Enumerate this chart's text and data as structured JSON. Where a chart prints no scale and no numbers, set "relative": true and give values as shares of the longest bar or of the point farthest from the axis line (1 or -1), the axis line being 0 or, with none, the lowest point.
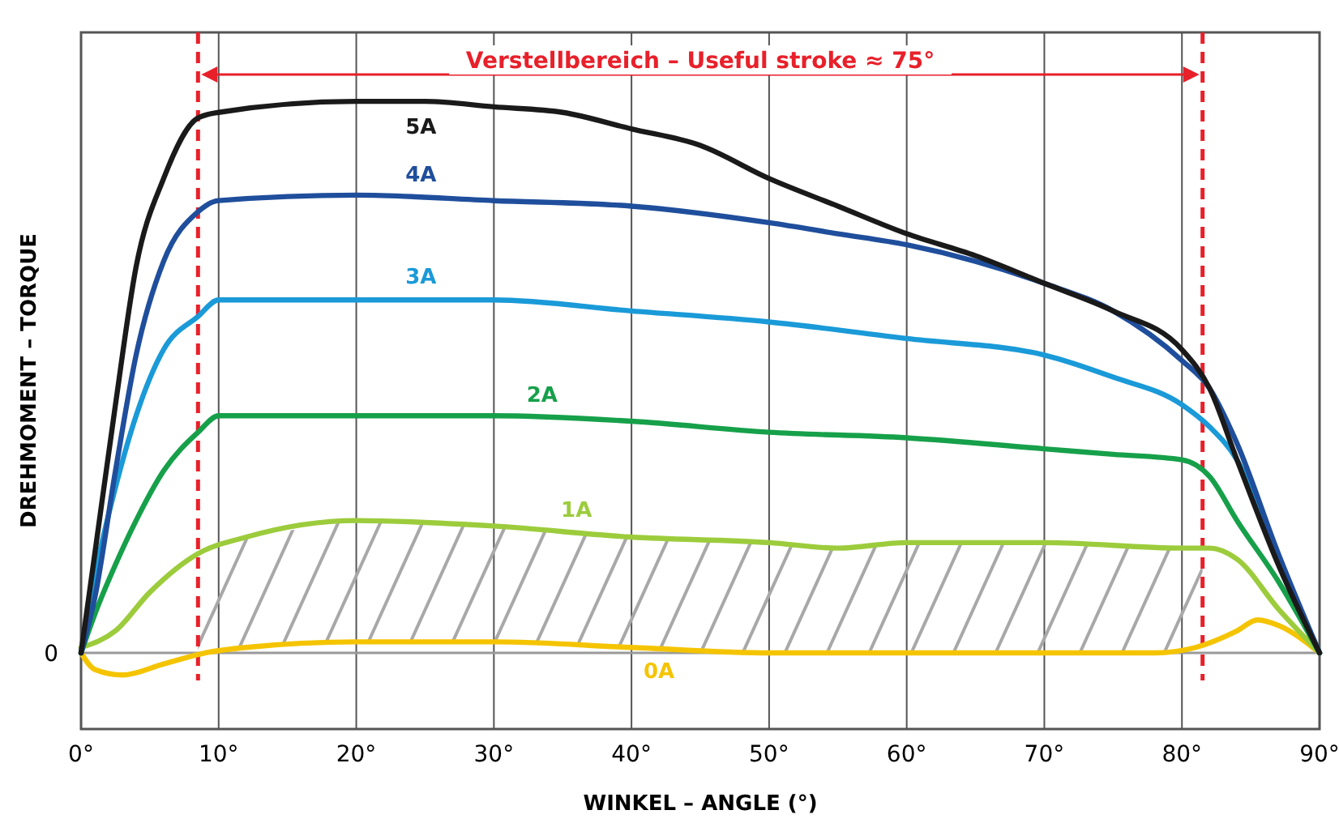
{
  "chart_data": {
    "type": "line",
    "relative": true,
    "xlabel": "WINKEL – ANGLE (°)",
    "ylabel": "DREHMOMENT – TORQUE",
    "xlim": [
      0,
      90
    ],
    "xticks": [
      {
        "value": 0,
        "label": "0°"
      },
      {
        "value": 10,
        "label": "10°"
      },
      {
        "value": 20,
        "label": "20°"
      },
      {
        "value": 30,
        "label": "30°"
      },
      {
        "value": 40,
        "label": "40°"
      },
      {
        "value": 50,
        "label": "50°"
      },
      {
        "value": 60,
        "label": "60°"
      },
      {
        "value": 70,
        "label": "70°"
      },
      {
        "value": 80,
        "label": "80°"
      },
      {
        "value": 90,
        "label": "90°"
      }
    ],
    "grid": "x",
    "legend": false,
    "marker": "none",
    "line_style": "solid",
    "series": [
      {
        "name": "0A",
        "color": "#f5c400",
        "x": [
          0,
          1,
          3,
          6,
          9,
          12,
          20,
          30,
          40,
          50,
          60,
          70,
          78,
          81,
          84,
          85.5,
          87,
          90
        ],
        "values": [
          0,
          -0.03,
          -0.04,
          -0.02,
          0,
          0.01,
          0.02,
          0.02,
          0.01,
          0,
          0,
          0,
          0,
          0.01,
          0.04,
          0.06,
          0.05,
          0
        ]
      },
      {
        "name": "1A",
        "color": "#9ccc3c",
        "x": [
          0,
          2.5,
          5,
          8.5,
          12,
          20,
          30,
          40,
          50,
          55,
          60,
          70,
          80,
          82,
          84,
          87,
          90
        ],
        "values": [
          0.01,
          0.04,
          0.11,
          0.18,
          0.21,
          0.24,
          0.23,
          0.21,
          0.2,
          0.19,
          0.2,
          0.2,
          0.19,
          0.19,
          0.17,
          0.08,
          0
        ]
      },
      {
        "name": "2A",
        "color": "#16a04a",
        "x": [
          0,
          1,
          2.5,
          4,
          6,
          8.5,
          10,
          20,
          30,
          40,
          50,
          60,
          70,
          75,
          80,
          82,
          84,
          87,
          90
        ],
        "values": [
          0,
          0.07,
          0.16,
          0.24,
          0.33,
          0.4,
          0.43,
          0.43,
          0.43,
          0.42,
          0.4,
          0.39,
          0.37,
          0.36,
          0.35,
          0.32,
          0.24,
          0.13,
          0
        ]
      },
      {
        "name": "3A",
        "color": "#1a9ad8",
        "x": [
          0,
          1,
          2.5,
          4,
          6,
          8.5,
          10,
          20,
          30,
          40,
          50,
          60,
          70,
          75,
          80,
          82,
          84,
          87,
          90
        ],
        "values": [
          0,
          0.14,
          0.3,
          0.43,
          0.55,
          0.61,
          0.64,
          0.64,
          0.64,
          0.62,
          0.6,
          0.57,
          0.54,
          0.5,
          0.45,
          0.41,
          0.35,
          0.17,
          0
        ]
      },
      {
        "name": "4A",
        "color": "#1f4e9c",
        "x": [
          0,
          1,
          2.5,
          4,
          6,
          8.5,
          10,
          20,
          30,
          40,
          50,
          55,
          60,
          65,
          70,
          75,
          80,
          82,
          84,
          87,
          90
        ],
        "values": [
          0,
          0.1,
          0.33,
          0.54,
          0.71,
          0.8,
          0.82,
          0.83,
          0.82,
          0.81,
          0.78,
          0.76,
          0.74,
          0.71,
          0.67,
          0.62,
          0.53,
          0.48,
          0.38,
          0.18,
          0
        ]
      },
      {
        "name": "5A",
        "color": "#1a1a1a",
        "x": [
          0,
          1,
          2.5,
          4,
          6,
          8.5,
          10,
          20,
          25,
          30,
          35,
          40,
          45,
          50,
          55,
          60,
          65,
          70,
          75,
          80,
          82,
          84,
          87,
          90
        ],
        "values": [
          0,
          0.18,
          0.45,
          0.7,
          0.86,
          0.97,
          0.98,
          1.0,
          1.0,
          0.99,
          0.98,
          0.95,
          0.92,
          0.86,
          0.81,
          0.76,
          0.72,
          0.67,
          0.62,
          0.55,
          0.48,
          0.35,
          0.16,
          0
        ]
      }
    ],
    "ref_lines": [
      {
        "axis": "y",
        "value": 0,
        "label": "0",
        "color": "#9a9a9a",
        "line_style": "solid"
      },
      {
        "axis": "x",
        "value": 8.5,
        "color": "#e8202a",
        "line_style": "dashed"
      },
      {
        "axis": "x",
        "value": 81.5,
        "color": "#e8202a",
        "line_style": "dashed"
      }
    ],
    "annotations": [
      "Verstellbereich – Useful stroke ≈ 75°"
    ]
  }
}
